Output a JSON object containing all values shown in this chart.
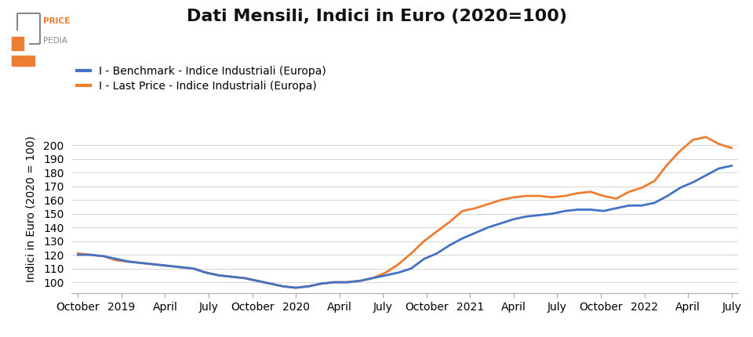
{
  "title": "Dati Mensili, Indici in Euro (2020=100)",
  "ylabel": "Indici in Euro (2020 = 100)",
  "legend_labels": [
    "I - Benchmark - Indice Industriali (Europa)",
    "I - Last Price - Indice Industriali (Europa)"
  ],
  "line_colors": [
    "#4472C4",
    "#ED7D31"
  ],
  "ylim": [
    92,
    215
  ],
  "yticks": [
    100,
    110,
    120,
    130,
    140,
    150,
    160,
    170,
    180,
    190,
    200
  ],
  "background_color": "#ffffff",
  "x_tick_labels": [
    "October",
    "2019",
    "April",
    "July",
    "October",
    "2020",
    "April",
    "July",
    "October",
    "2021",
    "April",
    "July",
    "October",
    "2022",
    "April",
    "July"
  ],
  "benchmark": [
    120,
    120,
    119,
    117,
    115,
    114,
    113,
    112,
    111,
    110,
    107,
    105,
    104,
    103,
    101,
    99,
    97,
    96,
    97,
    99,
    100,
    100,
    101,
    103,
    105,
    107,
    110,
    117,
    121,
    127,
    132,
    136,
    140,
    143,
    146,
    148,
    149,
    150,
    152,
    153,
    153,
    152,
    154,
    156,
    156,
    158,
    163,
    169,
    173,
    178,
    183,
    185
  ],
  "last_price": [
    121,
    120,
    119,
    116,
    115,
    114,
    113,
    112,
    111,
    110,
    107,
    105,
    104,
    103,
    101,
    99,
    97,
    96,
    97,
    99,
    100,
    100,
    101,
    103,
    107,
    113,
    121,
    130,
    137,
    144,
    152,
    154,
    157,
    160,
    162,
    163,
    163,
    162,
    163,
    165,
    166,
    163,
    161,
    166,
    169,
    174,
    186,
    196,
    204,
    206,
    201,
    198
  ],
  "logo_color_orange": "#ED7D31",
  "logo_color_gray": "#888888",
  "title_fontsize": 16,
  "axis_fontsize": 10,
  "legend_fontsize": 10
}
